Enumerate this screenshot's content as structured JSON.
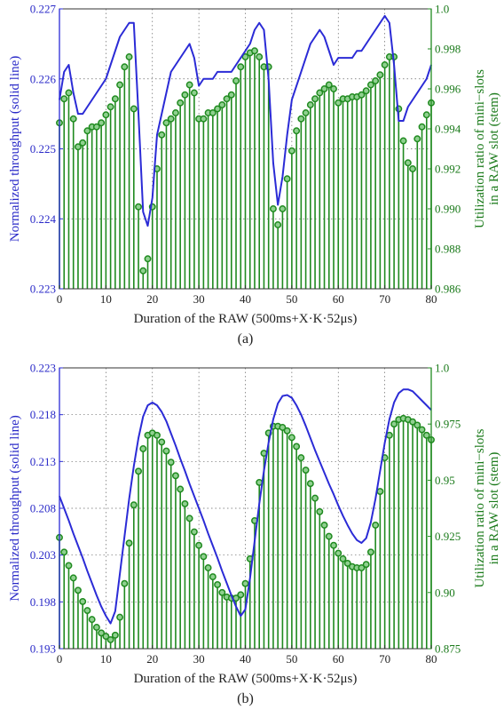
{
  "chart_data": [
    {
      "type": "line",
      "panel_label": "(a)",
      "xlabel": "Duration of the RAW (500ms+X·K·52μs)",
      "ylabel_left": "Normalized throughput (solid line)",
      "ylabel_right_line1": "Utilization ratio of mini−slots",
      "ylabel_right_line2": "in a RAW slot (stem)",
      "xlim": [
        0,
        80
      ],
      "ylim_left": [
        0.223,
        0.227
      ],
      "ylim_right": [
        0.986,
        1.0
      ],
      "xticks": [
        "0",
        "10",
        "20",
        "30",
        "40",
        "50",
        "60",
        "70",
        "80"
      ],
      "yticks_left": [
        "0.223",
        "0.224",
        "0.225",
        "0.226",
        "0.227"
      ],
      "yticks_right": [
        "0.986",
        "0.988",
        "0.990",
        "0.992",
        "0.994",
        "0.996",
        "0.998",
        "1.0"
      ],
      "grid": true,
      "colors": {
        "line": "#2b2bd6",
        "stem": "#1f8a1f",
        "marker_fill": "#8fd08f"
      },
      "line_series": {
        "x": [
          0,
          1,
          2,
          3,
          4,
          5,
          6,
          7,
          8,
          9,
          10,
          11,
          12,
          13,
          14,
          15,
          16,
          17,
          18,
          19,
          20,
          21,
          22,
          23,
          24,
          25,
          26,
          27,
          28,
          29,
          30,
          31,
          32,
          33,
          34,
          35,
          36,
          37,
          38,
          39,
          40,
          41,
          42,
          43,
          44,
          45,
          46,
          47,
          48,
          49,
          50,
          51,
          52,
          53,
          54,
          55,
          56,
          57,
          58,
          59,
          60,
          61,
          62,
          63,
          64,
          65,
          66,
          67,
          68,
          69,
          70,
          71,
          72,
          73,
          74,
          75,
          76,
          77,
          78,
          79,
          80
        ],
        "y": [
          0.2257,
          0.2261,
          0.2262,
          0.2258,
          0.2255,
          0.2255,
          0.2256,
          0.2257,
          0.2258,
          0.2259,
          0.226,
          0.2262,
          0.2264,
          0.2266,
          0.2267,
          0.2268,
          0.2268,
          0.2255,
          0.2241,
          0.2239,
          0.2243,
          0.2252,
          0.2255,
          0.2258,
          0.2261,
          0.2262,
          0.2263,
          0.2264,
          0.2265,
          0.2263,
          0.2259,
          0.226,
          0.226,
          0.226,
          0.2261,
          0.2261,
          0.2261,
          0.2261,
          0.2262,
          0.2263,
          0.2264,
          0.2265,
          0.2267,
          0.2268,
          0.2267,
          0.226,
          0.2248,
          0.2242,
          0.2246,
          0.2252,
          0.2257,
          0.2259,
          0.2261,
          0.2263,
          0.2265,
          0.2266,
          0.2267,
          0.2266,
          0.2264,
          0.2262,
          0.2263,
          0.2263,
          0.2263,
          0.2263,
          0.2264,
          0.2264,
          0.2265,
          0.2266,
          0.2267,
          0.2268,
          0.2269,
          0.2268,
          0.2262,
          0.2254,
          0.2254,
          0.2256,
          0.2257,
          0.2258,
          0.2259,
          0.226,
          0.2262
        ]
      },
      "stem_series": {
        "x": [
          0,
          1,
          2,
          3,
          4,
          5,
          6,
          7,
          8,
          9,
          10,
          11,
          12,
          13,
          14,
          15,
          16,
          17,
          18,
          19,
          20,
          21,
          22,
          23,
          24,
          25,
          26,
          27,
          28,
          29,
          30,
          31,
          32,
          33,
          34,
          35,
          36,
          37,
          38,
          39,
          40,
          41,
          42,
          43,
          44,
          45,
          46,
          47,
          48,
          49,
          50,
          51,
          52,
          53,
          54,
          55,
          56,
          57,
          58,
          59,
          60,
          61,
          62,
          63,
          64,
          65,
          66,
          67,
          68,
          69,
          70,
          71,
          72,
          73,
          74,
          75,
          76,
          77,
          78,
          79,
          80
        ],
        "y": [
          0.9943,
          0.9955,
          0.9958,
          0.9945,
          0.9931,
          0.9933,
          0.9939,
          0.9941,
          0.9941,
          0.9943,
          0.9947,
          0.9951,
          0.9955,
          0.9962,
          0.9971,
          0.9976,
          0.995,
          0.9901,
          0.9869,
          0.9875,
          0.9901,
          0.992,
          0.9937,
          0.9943,
          0.9945,
          0.9948,
          0.9953,
          0.9957,
          0.9962,
          0.9958,
          0.9945,
          0.9945,
          0.9948,
          0.9948,
          0.995,
          0.9952,
          0.9955,
          0.9957,
          0.9964,
          0.9971,
          0.9976,
          0.9978,
          0.9979,
          0.9976,
          0.9971,
          0.9971,
          0.99,
          0.9892,
          0.99,
          0.9915,
          0.9929,
          0.9939,
          0.9945,
          0.9948,
          0.9952,
          0.9955,
          0.9958,
          0.996,
          0.9962,
          0.996,
          0.9953,
          0.9955,
          0.9955,
          0.9956,
          0.9956,
          0.9957,
          0.9959,
          0.9962,
          0.9964,
          0.9967,
          0.9972,
          0.9976,
          0.9976,
          0.995,
          0.9934,
          0.9923,
          0.992,
          0.9935,
          0.9941,
          0.9947,
          0.9953
        ]
      }
    },
    {
      "type": "line",
      "panel_label": "(b)",
      "xlabel": "Duration of the RAW (500ms+X·K·52μs)",
      "ylabel_left": "Normalized throughput (solid line)",
      "ylabel_right_line1": "Utilization ratio of mini−slots",
      "ylabel_right_line2": "in a RAW slot (stem)",
      "xlim": [
        0,
        80
      ],
      "ylim_left": [
        0.193,
        0.223
      ],
      "ylim_right": [
        0.875,
        1.0
      ],
      "xticks": [
        "0",
        "10",
        "20",
        "30",
        "40",
        "50",
        "60",
        "70",
        "80"
      ],
      "yticks_left": [
        "0.193",
        "0.198",
        "0.203",
        "0.208",
        "0.213",
        "0.218",
        "0.223"
      ],
      "yticks_right": [
        "0.875",
        "0.90",
        "0.925",
        "0.95",
        "0.975",
        "1.0"
      ],
      "grid": true,
      "colors": {
        "line": "#2b2bd6",
        "stem": "#1f8a1f",
        "marker_fill": "#8fd08f"
      },
      "line_series": {
        "x": [
          0,
          1,
          2,
          3,
          4,
          5,
          6,
          7,
          8,
          9,
          10,
          11,
          12,
          13,
          14,
          15,
          16,
          17,
          18,
          19,
          20,
          21,
          22,
          23,
          24,
          25,
          26,
          27,
          28,
          29,
          30,
          31,
          32,
          33,
          34,
          35,
          36,
          37,
          38,
          39,
          40,
          41,
          42,
          43,
          44,
          45,
          46,
          47,
          48,
          49,
          50,
          51,
          52,
          53,
          54,
          55,
          56,
          57,
          58,
          59,
          60,
          61,
          62,
          63,
          64,
          65,
          66,
          67,
          68,
          69,
          70,
          71,
          72,
          73,
          74,
          75,
          76,
          77,
          78,
          79,
          80
        ],
        "y": [
          0.2093,
          0.208,
          0.2067,
          0.2053,
          0.204,
          0.2027,
          0.2013,
          0.2,
          0.1987,
          0.1975,
          0.1965,
          0.1957,
          0.197,
          0.201,
          0.205,
          0.209,
          0.2125,
          0.2155,
          0.2178,
          0.219,
          0.2193,
          0.219,
          0.2183,
          0.2173,
          0.216,
          0.2147,
          0.2133,
          0.212,
          0.2106,
          0.2093,
          0.208,
          0.2067,
          0.2053,
          0.204,
          0.2027,
          0.2013,
          0.2,
          0.1987,
          0.1975,
          0.1965,
          0.1972,
          0.2005,
          0.2045,
          0.2085,
          0.212,
          0.215,
          0.2175,
          0.2192,
          0.22,
          0.2201,
          0.2198,
          0.219,
          0.218,
          0.2168,
          0.2155,
          0.2142,
          0.213,
          0.2118,
          0.2106,
          0.2095,
          0.2083,
          0.2072,
          0.2062,
          0.2053,
          0.2046,
          0.2043,
          0.2048,
          0.2065,
          0.209,
          0.212,
          0.215,
          0.2175,
          0.2193,
          0.2203,
          0.2207,
          0.2207,
          0.2205,
          0.22,
          0.2195,
          0.219,
          0.2185
        ]
      },
      "stem_series": {
        "x": [
          0,
          1,
          2,
          3,
          4,
          5,
          6,
          7,
          8,
          9,
          10,
          11,
          12,
          13,
          14,
          15,
          16,
          17,
          18,
          19,
          20,
          21,
          22,
          23,
          24,
          25,
          26,
          27,
          28,
          29,
          30,
          31,
          32,
          33,
          34,
          35,
          36,
          37,
          38,
          39,
          40,
          41,
          42,
          43,
          44,
          45,
          46,
          47,
          48,
          49,
          50,
          51,
          52,
          53,
          54,
          55,
          56,
          57,
          58,
          59,
          60,
          61,
          62,
          63,
          64,
          65,
          66,
          67,
          68,
          69,
          70,
          71,
          72,
          73,
          74,
          75,
          76,
          77,
          78,
          79,
          80
        ],
        "y": [
          0.9245,
          0.918,
          0.912,
          0.9065,
          0.901,
          0.896,
          0.892,
          0.888,
          0.8845,
          0.882,
          0.8805,
          0.879,
          0.881,
          0.889,
          0.904,
          0.922,
          0.939,
          0.954,
          0.964,
          0.97,
          0.971,
          0.97,
          0.967,
          0.963,
          0.958,
          0.952,
          0.946,
          0.9395,
          0.933,
          0.927,
          0.921,
          0.916,
          0.911,
          0.907,
          0.9035,
          0.9,
          0.898,
          0.8975,
          0.8975,
          0.899,
          0.904,
          0.915,
          0.932,
          0.949,
          0.962,
          0.971,
          0.974,
          0.974,
          0.9735,
          0.972,
          0.969,
          0.965,
          0.96,
          0.9545,
          0.9485,
          0.942,
          0.936,
          0.93,
          0.925,
          0.921,
          0.9175,
          0.915,
          0.913,
          0.9115,
          0.911,
          0.911,
          0.9125,
          0.918,
          0.93,
          0.945,
          0.96,
          0.97,
          0.975,
          0.977,
          0.9775,
          0.977,
          0.976,
          0.9745,
          0.9725,
          0.97,
          0.968
        ]
      }
    }
  ]
}
